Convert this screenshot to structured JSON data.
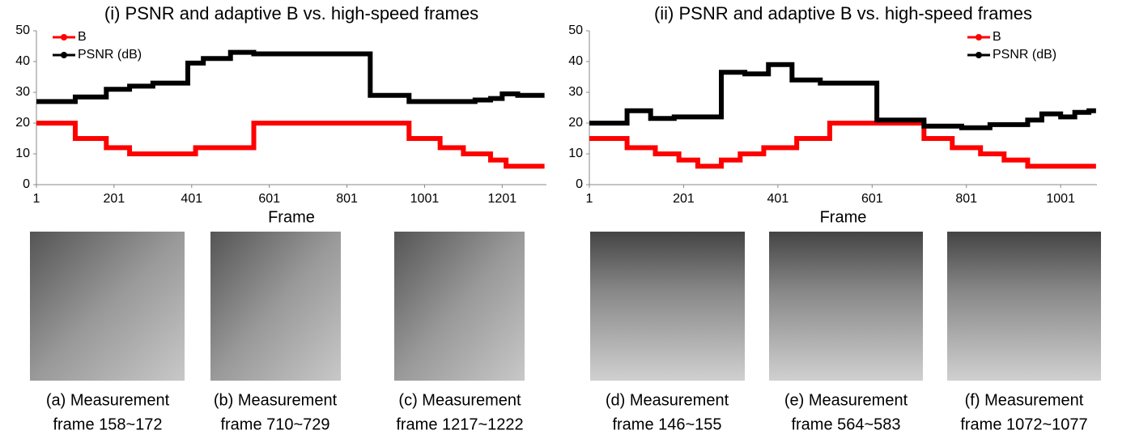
{
  "chart_data": [
    {
      "type": "step",
      "title": "(i) PSNR and adaptive B vs. high-speed frames",
      "x_label": "Frame",
      "xlim": [
        1,
        1315
      ],
      "xticks": [
        1,
        201,
        401,
        601,
        801,
        1001,
        1201
      ],
      "ylim": [
        0,
        50
      ],
      "yticks": [
        0,
        10,
        20,
        30,
        40,
        50
      ],
      "legend": "upper left",
      "series": [
        {
          "name": "B",
          "color": "#ff0000",
          "x": [
            1,
            101,
            181,
            241,
            411,
            561,
            961,
            1041,
            1101,
            1171,
            1211,
            1310
          ],
          "values": [
            20,
            15,
            12,
            10,
            12,
            20,
            15,
            12,
            10,
            8,
            6,
            6
          ]
        },
        {
          "name": "PSNR (dB)",
          "color": "#000000",
          "x": [
            1,
            101,
            181,
            241,
            301,
            391,
            431,
            501,
            561,
            861,
            961,
            1131,
            1171,
            1201,
            1241,
            1310
          ],
          "values": [
            27,
            28.5,
            31,
            32,
            33,
            39.5,
            41,
            43,
            42.5,
            29,
            27,
            27.5,
            28,
            29.5,
            29,
            29
          ]
        }
      ]
    },
    {
      "type": "step",
      "title": "(ii) PSNR and adaptive B vs. high-speed frames",
      "x_label": "Frame",
      "xlim": [
        1,
        1078
      ],
      "xticks": [
        1,
        201,
        401,
        601,
        801,
        1001
      ],
      "ylim": [
        0,
        50
      ],
      "yticks": [
        0,
        10,
        20,
        30,
        40,
        50
      ],
      "legend": "upper right",
      "series": [
        {
          "name": "B",
          "color": "#ff0000",
          "x": [
            1,
            81,
            141,
            191,
            231,
            281,
            321,
            371,
            441,
            511,
            711,
            771,
            831,
            881,
            931,
            1076
          ],
          "values": [
            15,
            12,
            10,
            8,
            6,
            8,
            10,
            12,
            15,
            20,
            15,
            12,
            10,
            8,
            6,
            6
          ]
        },
        {
          "name": "PSNR (dB)",
          "color": "#000000",
          "x": [
            1,
            81,
            131,
            181,
            281,
            331,
            381,
            431,
            491,
            611,
            711,
            791,
            851,
            931,
            961,
            1001,
            1031,
            1061,
            1076
          ],
          "values": [
            20,
            24,
            21.5,
            22,
            36.5,
            36,
            39,
            34,
            33,
            21,
            19,
            18.5,
            19.5,
            21,
            23,
            22,
            23.5,
            24,
            24
          ]
        }
      ]
    }
  ],
  "captions": [
    [
      "(a) Measurement",
      "frame 158~172"
    ],
    [
      "(b) Measurement",
      "frame 710~729"
    ],
    [
      "(c) Measurement",
      "frame 1217~1222"
    ],
    [
      "(d) Measurement",
      "frame 146~155"
    ],
    [
      "(e) Measurement",
      "frame 564~583"
    ],
    [
      "(f) Measurement",
      "frame 1072~1077"
    ]
  ]
}
